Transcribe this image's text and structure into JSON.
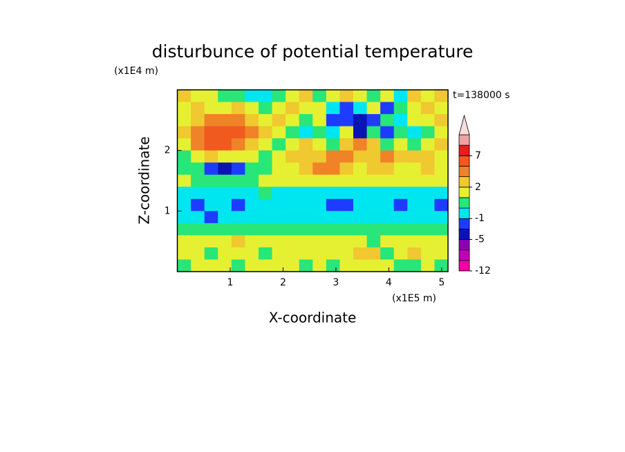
{
  "chart_data": {
    "type": "contour",
    "title": "disturbunce of potential temperature",
    "x_label": "X-coordinate",
    "y_label": "Z-coordinate",
    "x_unit": "(x1E5 m)",
    "y_unit": "(x1E4 m)",
    "annotation": "t=138000 s",
    "xlim": [
      0,
      5.12
    ],
    "xticks": [
      1,
      2,
      3,
      4,
      5
    ],
    "ylim": [
      0,
      3
    ],
    "yticks": [
      1,
      2
    ],
    "z": [
      [
        2.5,
        1.5,
        1.5,
        0.5,
        0.5,
        -0.5,
        -0.5,
        0.5,
        1.5,
        2.5,
        0.5,
        1.5,
        2.5,
        1.5,
        0.5,
        1.5,
        -0.5,
        2.5,
        1.5,
        2.5
      ],
      [
        1.5,
        2.5,
        1.5,
        1.5,
        2.5,
        1.5,
        0.5,
        1.5,
        2.5,
        1.5,
        1.5,
        -0.5,
        -2,
        -0.5,
        1.5,
        -2,
        0.5,
        1.5,
        2.5,
        1.5
      ],
      [
        1.5,
        2.5,
        4,
        4,
        4,
        2.5,
        1.5,
        2.5,
        1.5,
        0.5,
        1.5,
        -2,
        -2,
        -4,
        -2,
        0.5,
        -0.5,
        1.5,
        1.5,
        2.5
      ],
      [
        2.5,
        4,
        6,
        6,
        6,
        4,
        2.5,
        1.5,
        0.5,
        -0.5,
        0.5,
        -0.5,
        1.5,
        -4,
        0.5,
        -2,
        0.5,
        -0.5,
        0.5,
        1.5
      ],
      [
        1.5,
        4,
        6,
        6,
        4,
        2.5,
        1.5,
        0.5,
        1.5,
        2.5,
        1.5,
        0.5,
        2.5,
        4,
        2.5,
        0.5,
        1.5,
        0.5,
        1.5,
        2.5
      ],
      [
        0.5,
        1.5,
        2.5,
        1.5,
        1.5,
        1.5,
        0.5,
        1.5,
        2.5,
        2.5,
        2.5,
        4,
        4,
        2.5,
        2.5,
        4,
        2.5,
        2.5,
        2.5,
        1.5
      ],
      [
        0.5,
        0.5,
        -2,
        -4,
        -2,
        0.5,
        0.5,
        1.5,
        1.5,
        2.5,
        4,
        4,
        2.5,
        1.5,
        2.5,
        2.5,
        1.5,
        1.5,
        2.5,
        1.5
      ],
      [
        1.5,
        0.5,
        0.5,
        0.5,
        0.5,
        0.5,
        1.5,
        1.5,
        1.5,
        1.5,
        1.5,
        1.5,
        1.5,
        1.5,
        1.5,
        1.5,
        1.5,
        1.5,
        1.5,
        1.5
      ],
      [
        -0.5,
        -0.5,
        -0.5,
        -0.5,
        -0.5,
        -0.5,
        0.5,
        -0.5,
        -0.5,
        -0.5,
        -0.5,
        -0.5,
        -0.5,
        -0.5,
        -0.5,
        -0.5,
        -0.5,
        -0.5,
        -0.5,
        -0.5
      ],
      [
        -0.5,
        -2,
        -0.5,
        -0.5,
        -2,
        -0.5,
        -0.5,
        -0.5,
        -0.5,
        -0.5,
        -0.5,
        -2,
        -2,
        -0.5,
        -0.5,
        -0.5,
        -2,
        -0.5,
        -0.5,
        -2
      ],
      [
        -0.5,
        -0.5,
        -2,
        -0.5,
        -0.5,
        -0.5,
        -0.5,
        -0.5,
        -0.5,
        -0.5,
        -0.5,
        -0.5,
        -0.5,
        -0.5,
        -0.5,
        -0.5,
        -0.5,
        -0.5,
        -0.5,
        -0.5
      ],
      [
        0.5,
        0.5,
        0.5,
        0.5,
        0.5,
        0.5,
        0.5,
        0.5,
        0.5,
        0.5,
        0.5,
        0.5,
        0.5,
        0.5,
        0.5,
        0.5,
        0.5,
        0.5,
        0.5,
        0.5
      ],
      [
        1.5,
        1.5,
        1.5,
        1.5,
        2.5,
        1.5,
        1.5,
        1.5,
        1.5,
        1.5,
        1.5,
        1.5,
        1.5,
        1.5,
        0.5,
        1.5,
        1.5,
        1.5,
        1.5,
        1.5
      ],
      [
        1.5,
        1.5,
        0.5,
        1.5,
        1.5,
        1.5,
        0.5,
        1.5,
        1.5,
        1.5,
        1.5,
        1.5,
        1.5,
        2.5,
        2.5,
        0.5,
        1.5,
        2.5,
        1.5,
        1.5
      ],
      [
        0.5,
        1.5,
        1.5,
        1.5,
        0.5,
        1.5,
        1.5,
        1.5,
        1.5,
        0.5,
        1.5,
        0.5,
        1.5,
        1.5,
        1.5,
        1.5,
        0.5,
        0.5,
        1.5,
        0.5
      ]
    ],
    "colorbar": {
      "levels": [
        -12,
        -9,
        -7,
        -5,
        -3,
        -1,
        0,
        1,
        2,
        3,
        5,
        7,
        9,
        11
      ],
      "colors": [
        "#f000a0",
        "#c000b4",
        "#8c00b4",
        "#0a14b4",
        "#1e3cff",
        "#00e6f0",
        "#28e678",
        "#e6f032",
        "#f0c830",
        "#f08228",
        "#f05a1e",
        "#e61e1e",
        "#f0a0a0"
      ],
      "extend_color": "#fadcdc",
      "ticks": [
        -12,
        -5,
        -1,
        2,
        7
      ]
    }
  }
}
